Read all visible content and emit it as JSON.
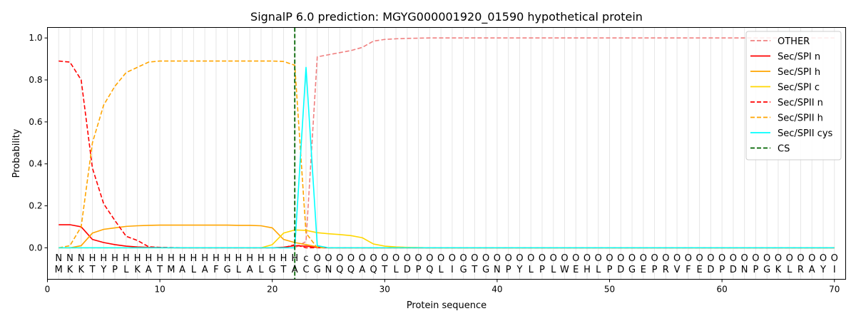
{
  "chart_data": {
    "type": "line",
    "title": "SignalP 6.0 prediction: MGYG000001920_01590 hypothetical protein",
    "xlabel": "Protein sequence",
    "ylabel": "Probability",
    "xlim": [
      0,
      71
    ],
    "ylim": [
      -0.15,
      1.05
    ],
    "xticks": [
      "0",
      "10",
      "20",
      "30",
      "40",
      "50",
      "60",
      "70"
    ],
    "yticks": [
      "0.0",
      "0.2",
      "0.4",
      "0.6",
      "0.8",
      "1.0"
    ],
    "grid": "vertical lines at each residue",
    "legend_position": "top-right",
    "sequence": [
      "M",
      "K",
      "K",
      "T",
      "Y",
      "P",
      "L",
      "K",
      "A",
      "T",
      "M",
      "A",
      "L",
      "A",
      "F",
      "G",
      "L",
      "A",
      "L",
      "G",
      "T",
      "A",
      "C",
      "G",
      "N",
      "Q",
      "Q",
      "A",
      "Q",
      "T",
      "L",
      "D",
      "P",
      "Q",
      "L",
      "I",
      "G",
      "T",
      "G",
      "N",
      "P",
      "Y",
      "L",
      "P",
      "L",
      "W",
      "E",
      "H",
      "L",
      "P",
      "D",
      "G",
      "E",
      "P",
      "R",
      "V",
      "F",
      "E",
      "D",
      "P",
      "D",
      "N",
      "P",
      "G",
      "K",
      "L",
      "R",
      "A",
      "Y",
      "I"
    ],
    "region_labels": [
      "N",
      "N",
      "N",
      "H",
      "H",
      "H",
      "H",
      "H",
      "H",
      "H",
      "H",
      "H",
      "H",
      "H",
      "H",
      "H",
      "H",
      "H",
      "H",
      "H",
      "H",
      "H",
      "c",
      "O",
      "O",
      "O",
      "O",
      "O",
      "O",
      "O",
      "O",
      "O",
      "O",
      "O",
      "O",
      "O",
      "O",
      "O",
      "O",
      "O",
      "O",
      "O",
      "O",
      "O",
      "O",
      "O",
      "O",
      "O",
      "O",
      "O",
      "O",
      "O",
      "O",
      "O",
      "O",
      "O",
      "O",
      "O",
      "O",
      "O",
      "O",
      "O",
      "O",
      "O",
      "O",
      "O",
      "O",
      "O",
      "O",
      "O"
    ],
    "region_colors": {
      "N": "#ff0000",
      "H": "#ffa500",
      "c": "#00ffff",
      "O": "#808080"
    },
    "cs_position": 22,
    "cs_color": "#006400",
    "series": [
      {
        "name": "OTHER",
        "color": "#f08080",
        "dash": "dashed",
        "values": [
          0.0,
          0.0,
          0.0,
          0.0,
          0.0,
          0.0,
          0.0,
          0.0,
          0.0,
          0.0,
          0.0,
          0.0,
          0.0,
          0.0,
          0.0,
          0.0,
          0.0,
          0.0,
          0.0,
          0.0,
          0.0,
          0.0,
          0.03,
          0.91,
          0.92,
          0.93,
          0.94,
          0.955,
          0.985,
          0.993,
          0.996,
          0.998,
          0.999,
          1.0,
          1.0,
          1.0,
          1.0,
          1.0,
          1.0,
          1.0,
          1.0,
          1.0,
          1.0,
          1.0,
          1.0,
          1.0,
          1.0,
          1.0,
          1.0,
          1.0,
          1.0,
          1.0,
          1.0,
          1.0,
          1.0,
          1.0,
          1.0,
          1.0,
          1.0,
          1.0,
          1.0,
          1.0,
          1.0,
          1.0,
          1.0,
          1.0,
          1.0,
          1.0,
          1.0,
          1.0
        ]
      },
      {
        "name": "Sec/SPI n",
        "color": "#ff0000",
        "dash": "solid",
        "values": [
          0.11,
          0.11,
          0.1,
          0.04,
          0.025,
          0.015,
          0.008,
          0.004,
          0.002,
          0.001,
          0.0,
          0.0,
          0.0,
          0.0,
          0.0,
          0.0,
          0.0,
          0.0,
          0.0,
          0.0,
          0.003,
          0.01,
          0.008,
          0.002,
          0.0,
          0.0,
          0.0,
          0.0,
          0.0,
          0.0,
          0.0,
          0.0,
          0.0,
          0.0,
          0.0,
          0.0,
          0.0,
          0.0,
          0.0,
          0.0,
          0.0,
          0.0,
          0.0,
          0.0,
          0.0,
          0.0,
          0.0,
          0.0,
          0.0,
          0.0,
          0.0,
          0.0,
          0.0,
          0.0,
          0.0,
          0.0,
          0.0,
          0.0,
          0.0,
          0.0,
          0.0,
          0.0,
          0.0,
          0.0,
          0.0,
          0.0,
          0.0,
          0.0,
          0.0,
          0.0
        ]
      },
      {
        "name": "Sec/SPI h",
        "color": "#ffa500",
        "dash": "solid",
        "values": [
          0.0,
          0.0,
          0.01,
          0.07,
          0.088,
          0.095,
          0.102,
          0.105,
          0.107,
          0.108,
          0.108,
          0.108,
          0.108,
          0.108,
          0.108,
          0.108,
          0.107,
          0.107,
          0.105,
          0.095,
          0.04,
          0.025,
          0.015,
          0.005,
          0.0,
          0.0,
          0.0,
          0.0,
          0.0,
          0.0,
          0.0,
          0.0,
          0.0,
          0.0,
          0.0,
          0.0,
          0.0,
          0.0,
          0.0,
          0.0,
          0.0,
          0.0,
          0.0,
          0.0,
          0.0,
          0.0,
          0.0,
          0.0,
          0.0,
          0.0,
          0.0,
          0.0,
          0.0,
          0.0,
          0.0,
          0.0,
          0.0,
          0.0,
          0.0,
          0.0,
          0.0,
          0.0,
          0.0,
          0.0,
          0.0,
          0.0,
          0.0,
          0.0,
          0.0,
          0.0
        ]
      },
      {
        "name": "Sec/SPI c",
        "color": "#ffd700",
        "dash": "solid",
        "values": [
          0.0,
          0.0,
          0.0,
          0.0,
          0.0,
          0.0,
          0.0,
          0.0,
          0.0,
          0.0,
          0.0,
          0.0,
          0.0,
          0.0,
          0.0,
          0.0,
          0.0,
          0.0,
          0.0,
          0.015,
          0.07,
          0.085,
          0.083,
          0.072,
          0.067,
          0.063,
          0.058,
          0.048,
          0.018,
          0.008,
          0.004,
          0.002,
          0.001,
          0.0,
          0.0,
          0.0,
          0.0,
          0.0,
          0.0,
          0.0,
          0.0,
          0.0,
          0.0,
          0.0,
          0.0,
          0.0,
          0.0,
          0.0,
          0.0,
          0.0,
          0.0,
          0.0,
          0.0,
          0.0,
          0.0,
          0.0,
          0.0,
          0.0,
          0.0,
          0.0,
          0.0,
          0.0,
          0.0,
          0.0,
          0.0,
          0.0,
          0.0,
          0.0,
          0.0,
          0.0
        ]
      },
      {
        "name": "Sec/SPII n",
        "color": "#ff0000",
        "dash": "dashed",
        "values": [
          0.89,
          0.885,
          0.8,
          0.38,
          0.21,
          0.13,
          0.055,
          0.035,
          0.005,
          0.002,
          0.001,
          0.0,
          0.0,
          0.0,
          0.0,
          0.0,
          0.0,
          0.0,
          0.0,
          0.0,
          0.0,
          0.015,
          0.0,
          0.0,
          0.0,
          0.0,
          0.0,
          0.0,
          0.0,
          0.0,
          0.0,
          0.0,
          0.0,
          0.0,
          0.0,
          0.0,
          0.0,
          0.0,
          0.0,
          0.0,
          0.0,
          0.0,
          0.0,
          0.0,
          0.0,
          0.0,
          0.0,
          0.0,
          0.0,
          0.0,
          0.0,
          0.0,
          0.0,
          0.0,
          0.0,
          0.0,
          0.0,
          0.0,
          0.0,
          0.0,
          0.0,
          0.0,
          0.0,
          0.0,
          0.0,
          0.0,
          0.0,
          0.0,
          0.0,
          0.0
        ]
      },
      {
        "name": "Sec/SPII h",
        "color": "#ffa500",
        "dash": "dashed",
        "values": [
          0.0,
          0.01,
          0.1,
          0.5,
          0.68,
          0.77,
          0.835,
          0.86,
          0.885,
          0.89,
          0.89,
          0.89,
          0.89,
          0.89,
          0.89,
          0.89,
          0.89,
          0.89,
          0.89,
          0.89,
          0.888,
          0.87,
          0.07,
          0.0,
          0.0,
          0.0,
          0.0,
          0.0,
          0.0,
          0.0,
          0.0,
          0.0,
          0.0,
          0.0,
          0.0,
          0.0,
          0.0,
          0.0,
          0.0,
          0.0,
          0.0,
          0.0,
          0.0,
          0.0,
          0.0,
          0.0,
          0.0,
          0.0,
          0.0,
          0.0,
          0.0,
          0.0,
          0.0,
          0.0,
          0.0,
          0.0,
          0.0,
          0.0,
          0.0,
          0.0,
          0.0,
          0.0,
          0.0,
          0.0,
          0.0,
          0.0,
          0.0,
          0.0,
          0.0,
          0.0
        ]
      },
      {
        "name": "Sec/SPII cys",
        "color": "#00ffff",
        "dash": "solid",
        "values": [
          0.0,
          0.0,
          0.0,
          0.0,
          0.0,
          0.0,
          0.0,
          0.0,
          0.0,
          0.0,
          0.0,
          0.0,
          0.0,
          0.0,
          0.0,
          0.0,
          0.0,
          0.0,
          0.0,
          0.0,
          0.0,
          0.0,
          0.86,
          0.01,
          0.0,
          0.0,
          0.0,
          0.0,
          0.0,
          0.0,
          0.0,
          0.0,
          0.0,
          0.0,
          0.0,
          0.0,
          0.0,
          0.0,
          0.0,
          0.0,
          0.0,
          0.0,
          0.0,
          0.0,
          0.0,
          0.0,
          0.0,
          0.0,
          0.0,
          0.0,
          0.0,
          0.0,
          0.0,
          0.0,
          0.0,
          0.0,
          0.0,
          0.0,
          0.0,
          0.0,
          0.0,
          0.0,
          0.0,
          0.0,
          0.0,
          0.0,
          0.0,
          0.0,
          0.0,
          0.0
        ]
      }
    ],
    "legend": [
      "OTHER",
      "Sec/SPI n",
      "Sec/SPI h",
      "Sec/SPI c",
      "Sec/SPII n",
      "Sec/SPII h",
      "Sec/SPII cys",
      "CS"
    ]
  }
}
